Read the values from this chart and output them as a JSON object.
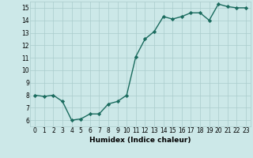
{
  "x": [
    0,
    1,
    2,
    3,
    4,
    5,
    6,
    7,
    8,
    9,
    10,
    11,
    12,
    13,
    14,
    15,
    16,
    17,
    18,
    19,
    20,
    21,
    22,
    23
  ],
  "y": [
    8.0,
    7.9,
    8.0,
    7.5,
    6.0,
    6.1,
    6.5,
    6.5,
    7.3,
    7.5,
    8.0,
    11.1,
    12.5,
    13.1,
    14.3,
    14.1,
    14.3,
    14.6,
    14.6,
    14.0,
    15.3,
    15.1,
    15.0,
    15.0
  ],
  "line_color": "#1a6b5e",
  "marker": "D",
  "marker_size": 2.2,
  "bg_color": "#cce8e8",
  "grid_color": "#aacccc",
  "xlabel": "Humidex (Indice chaleur)",
  "xlim": [
    -0.5,
    23.5
  ],
  "ylim": [
    5.5,
    15.5
  ],
  "yticks": [
    6,
    7,
    8,
    9,
    10,
    11,
    12,
    13,
    14,
    15
  ],
  "xticks": [
    0,
    1,
    2,
    3,
    4,
    5,
    6,
    7,
    8,
    9,
    10,
    11,
    12,
    13,
    14,
    15,
    16,
    17,
    18,
    19,
    20,
    21,
    22,
    23
  ],
  "tick_fontsize": 5.5,
  "label_fontsize": 6.5,
  "line_width": 1.0
}
